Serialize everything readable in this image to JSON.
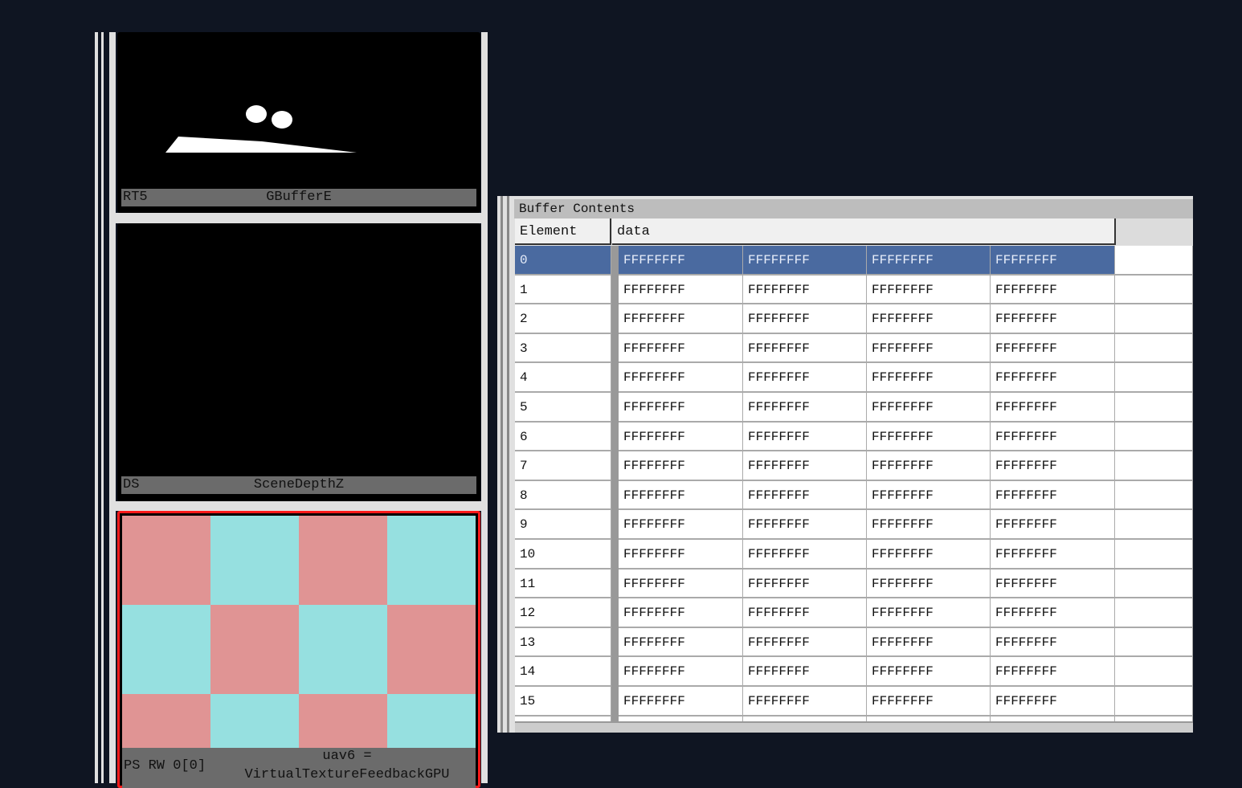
{
  "panels": [
    {
      "slot": "RT5",
      "name": "GBufferE"
    },
    {
      "slot": "DS",
      "name": "SceneDepthZ"
    },
    {
      "slot": "PS RW 0[0]",
      "name_line1": "uav6 =",
      "name_line2": "VirtualTextureFeedbackGPU",
      "highlight_color": "#ff0000"
    }
  ],
  "buffer": {
    "title": "Buffer Contents",
    "columns": [
      "Element",
      "data"
    ],
    "selected_row": 0,
    "rows": [
      {
        "element": "0",
        "values": [
          "FFFFFFFF",
          "FFFFFFFF",
          "FFFFFFFF",
          "FFFFFFFF"
        ]
      },
      {
        "element": "1",
        "values": [
          "FFFFFFFF",
          "FFFFFFFF",
          "FFFFFFFF",
          "FFFFFFFF"
        ]
      },
      {
        "element": "2",
        "values": [
          "FFFFFFFF",
          "FFFFFFFF",
          "FFFFFFFF",
          "FFFFFFFF"
        ]
      },
      {
        "element": "3",
        "values": [
          "FFFFFFFF",
          "FFFFFFFF",
          "FFFFFFFF",
          "FFFFFFFF"
        ]
      },
      {
        "element": "4",
        "values": [
          "FFFFFFFF",
          "FFFFFFFF",
          "FFFFFFFF",
          "FFFFFFFF"
        ]
      },
      {
        "element": "5",
        "values": [
          "FFFFFFFF",
          "FFFFFFFF",
          "FFFFFFFF",
          "FFFFFFFF"
        ]
      },
      {
        "element": "6",
        "values": [
          "FFFFFFFF",
          "FFFFFFFF",
          "FFFFFFFF",
          "FFFFFFFF"
        ]
      },
      {
        "element": "7",
        "values": [
          "FFFFFFFF",
          "FFFFFFFF",
          "FFFFFFFF",
          "FFFFFFFF"
        ]
      },
      {
        "element": "8",
        "values": [
          "FFFFFFFF",
          "FFFFFFFF",
          "FFFFFFFF",
          "FFFFFFFF"
        ]
      },
      {
        "element": "9",
        "values": [
          "FFFFFFFF",
          "FFFFFFFF",
          "FFFFFFFF",
          "FFFFFFFF"
        ]
      },
      {
        "element": "10",
        "values": [
          "FFFFFFFF",
          "FFFFFFFF",
          "FFFFFFFF",
          "FFFFFFFF"
        ]
      },
      {
        "element": "11",
        "values": [
          "FFFFFFFF",
          "FFFFFFFF",
          "FFFFFFFF",
          "FFFFFFFF"
        ]
      },
      {
        "element": "12",
        "values": [
          "FFFFFFFF",
          "FFFFFFFF",
          "FFFFFFFF",
          "FFFFFFFF"
        ]
      },
      {
        "element": "13",
        "values": [
          "FFFFFFFF",
          "FFFFFFFF",
          "FFFFFFFF",
          "FFFFFFFF"
        ]
      },
      {
        "element": "14",
        "values": [
          "FFFFFFFF",
          "FFFFFFFF",
          "FFFFFFFF",
          "FFFFFFFF"
        ]
      },
      {
        "element": "15",
        "values": [
          "FFFFFFFF",
          "FFFFFFFF",
          "FFFFFFFF",
          "FFFFFFFF"
        ]
      }
    ]
  },
  "colors": {
    "selection": "#4a6aa0",
    "checker_a": "#e09494",
    "checker_b": "#96e0e0"
  }
}
